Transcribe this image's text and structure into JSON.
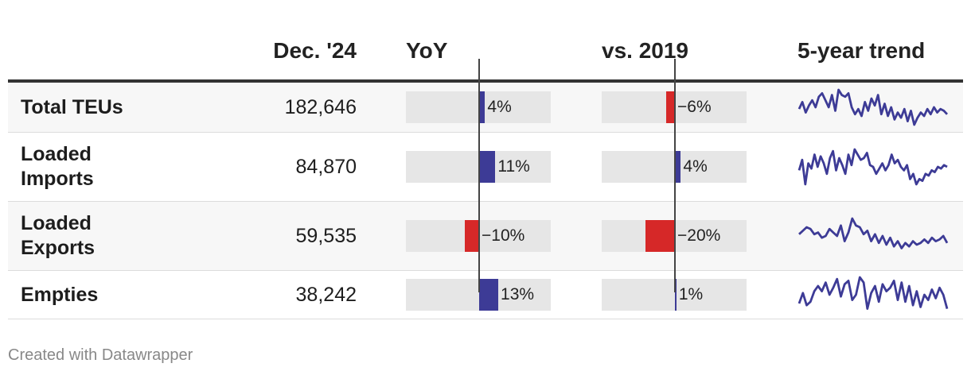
{
  "header": {
    "col_value": "Dec. '24",
    "col_yoy": "YoY",
    "col_vs2019": "vs. 2019",
    "col_trend": "5-year trend"
  },
  "footer": "Created with Datawrapper",
  "colors": {
    "positive": "#3d3b96",
    "negative": "#d62828",
    "spark": "#3d3b96"
  },
  "chart_data": {
    "type": "table",
    "columns": [
      "",
      "Dec. '24",
      "YoY",
      "vs. 2019",
      "5-year trend"
    ],
    "rows": [
      {
        "name": "Total TEUs",
        "value": "182,646",
        "yoy": 4,
        "yoy_label": "4%",
        "vs2019": -6,
        "vs2019_label": "−6%",
        "trend": [
          0.45,
          0.65,
          0.35,
          0.55,
          0.7,
          0.5,
          0.8,
          0.9,
          0.7,
          0.5,
          0.85,
          0.4,
          1.0,
          0.85,
          0.8,
          0.9,
          0.5,
          0.3,
          0.45,
          0.25,
          0.65,
          0.4,
          0.75,
          0.55,
          0.85,
          0.3,
          0.6,
          0.25,
          0.5,
          0.15,
          0.35,
          0.2,
          0.45,
          0.1,
          0.4,
          0.0,
          0.2,
          0.35,
          0.25,
          0.45,
          0.3,
          0.5,
          0.35,
          0.45,
          0.4,
          0.3
        ]
      },
      {
        "name": "Loaded Imports",
        "value": "84,870",
        "yoy": 11,
        "yoy_label": "11%",
        "vs2019": 4,
        "vs2019_label": "4%",
        "trend": [
          0.4,
          0.7,
          0.0,
          0.6,
          0.45,
          0.85,
          0.5,
          0.8,
          0.6,
          0.3,
          0.75,
          0.95,
          0.4,
          0.75,
          0.55,
          0.3,
          0.85,
          0.55,
          1.0,
          0.85,
          0.7,
          0.75,
          0.9,
          0.55,
          0.5,
          0.3,
          0.45,
          0.6,
          0.4,
          0.55,
          0.85,
          0.6,
          0.7,
          0.5,
          0.4,
          0.55,
          0.15,
          0.3,
          0.0,
          0.15,
          0.1,
          0.3,
          0.25,
          0.4,
          0.35,
          0.5,
          0.45,
          0.55,
          0.5
        ]
      },
      {
        "name": "Loaded Exports",
        "value": "59,535",
        "yoy": -10,
        "yoy_label": "−10%",
        "vs2019": -20,
        "vs2019_label": "−20%",
        "trend": [
          0.55,
          0.65,
          0.75,
          0.7,
          0.55,
          0.6,
          0.45,
          0.5,
          0.7,
          0.6,
          0.5,
          0.8,
          0.35,
          0.6,
          1.0,
          0.8,
          0.75,
          0.55,
          0.65,
          0.35,
          0.55,
          0.3,
          0.5,
          0.25,
          0.45,
          0.2,
          0.35,
          0.15,
          0.3,
          0.2,
          0.35,
          0.25,
          0.3,
          0.4,
          0.3,
          0.45,
          0.35,
          0.4,
          0.5,
          0.3
        ]
      },
      {
        "name": "Empties",
        "value": "38,242",
        "yoy": 13,
        "yoy_label": "13%",
        "vs2019": 1,
        "vs2019_label": "1%",
        "trend": [
          0.25,
          0.55,
          0.2,
          0.3,
          0.6,
          0.75,
          0.6,
          0.85,
          0.5,
          0.7,
          0.95,
          0.45,
          0.8,
          0.9,
          0.35,
          0.5,
          1.0,
          0.85,
          0.1,
          0.55,
          0.75,
          0.3,
          0.8,
          0.6,
          0.7,
          0.9,
          0.35,
          0.85,
          0.3,
          0.75,
          0.2,
          0.6,
          0.15,
          0.5,
          0.35,
          0.65,
          0.4,
          0.7,
          0.5,
          0.1
        ]
      }
    ]
  }
}
